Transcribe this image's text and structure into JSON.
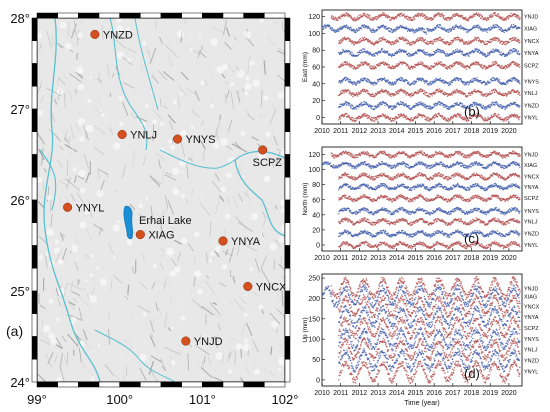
{
  "map": {
    "label": "(a)",
    "lat_ticks": [
      "28°",
      "27°",
      "26°",
      "25°",
      "24°"
    ],
    "lon_ticks": [
      "99°",
      "100°",
      "101°",
      "102°"
    ],
    "lake_label": "Erhai Lake",
    "colors": {
      "station": "#d4501f",
      "lake": "#1a8fd6",
      "border": "#58c0cf",
      "relief": "#d9d9d9"
    },
    "stations": [
      {
        "name": "YNZD",
        "lon": 99.7,
        "lat": 27.82
      },
      {
        "name": "YNLJ",
        "lon": 100.03,
        "lat": 26.72
      },
      {
        "name": "YNYS",
        "lon": 100.7,
        "lat": 26.67
      },
      {
        "name": "SCPZ",
        "lon": 101.73,
        "lat": 26.55
      },
      {
        "name": "YNYL",
        "lon": 99.37,
        "lat": 25.92
      },
      {
        "name": "XIAG",
        "lon": 100.25,
        "lat": 25.62
      },
      {
        "name": "YNYA",
        "lon": 101.25,
        "lat": 25.55
      },
      {
        "name": "YNCX",
        "lon": 101.55,
        "lat": 25.05
      },
      {
        "name": "YNJD",
        "lon": 100.8,
        "lat": 24.45
      }
    ]
  },
  "chart_data": [
    {
      "type": "scatter",
      "panel_label": "(b)",
      "xlabel": "",
      "ylabel": "East (mm)",
      "xlim": [
        2010,
        2020.7
      ],
      "ylim": [
        -8,
        128
      ],
      "x_ticks": [
        "2010",
        "2011",
        "2012",
        "2013",
        "2014",
        "2015",
        "2016",
        "2017",
        "2018",
        "2019",
        "2020"
      ],
      "y_ticks": [
        0,
        20,
        40,
        60,
        80,
        100,
        120
      ],
      "series": [
        {
          "name": "YNJD",
          "offset": 120,
          "start": 2010.5,
          "color": "#b04a4a"
        },
        {
          "name": "XIAG",
          "offset": 106,
          "start": 2010.0,
          "color": "#3d5aa8"
        },
        {
          "name": "YNCX",
          "offset": 91,
          "start": 2010.9,
          "color": "#b04a4a"
        },
        {
          "name": "YNYA",
          "offset": 77,
          "start": 2010.9,
          "color": "#3d5aa8"
        },
        {
          "name": "SCPZ",
          "offset": 62,
          "start": 2010.9,
          "color": "#b04a4a"
        },
        {
          "name": "YNYS",
          "offset": 43,
          "start": 2010.9,
          "color": "#3d5aa8"
        },
        {
          "name": "YNLJ",
          "offset": 29,
          "start": 2010.9,
          "color": "#b04a4a"
        },
        {
          "name": "YNZD",
          "offset": 14,
          "start": 2010.9,
          "color": "#3d5aa8"
        },
        {
          "name": "YNYL",
          "offset": 0,
          "start": 2010.9,
          "color": "#b04a4a"
        }
      ]
    },
    {
      "type": "scatter",
      "panel_label": "(c)",
      "xlabel": "",
      "ylabel": "North (mm)",
      "xlim": [
        2010,
        2020.7
      ],
      "ylim": [
        -8,
        130
      ],
      "x_ticks": [
        "2010",
        "2011",
        "2012",
        "2013",
        "2014",
        "2015",
        "2016",
        "2017",
        "2018",
        "2019",
        "2020"
      ],
      "y_ticks": [
        0,
        20,
        40,
        60,
        80,
        100,
        120
      ],
      "series": [
        {
          "name": "YNJD",
          "offset": 120,
          "start": 2010.5,
          "color": "#b04a4a"
        },
        {
          "name": "XIAG",
          "offset": 106,
          "start": 2010.0,
          "color": "#3d5aa8"
        },
        {
          "name": "YNCX",
          "offset": 91,
          "start": 2010.9,
          "color": "#b04a4a"
        },
        {
          "name": "YNYA",
          "offset": 77,
          "start": 2010.9,
          "color": "#3d5aa8"
        },
        {
          "name": "SCPZ",
          "offset": 62,
          "start": 2010.9,
          "color": "#b04a4a"
        },
        {
          "name": "YNYS",
          "offset": 45,
          "start": 2010.9,
          "color": "#3d5aa8"
        },
        {
          "name": "YNLJ",
          "offset": 31,
          "start": 2010.9,
          "color": "#b04a4a"
        },
        {
          "name": "YNZD",
          "offset": 15,
          "start": 2010.9,
          "color": "#3d5aa8"
        },
        {
          "name": "YNYL",
          "offset": 0,
          "start": 2010.9,
          "color": "#b04a4a"
        }
      ]
    },
    {
      "type": "scatter",
      "panel_label": "(d)",
      "xlabel": "Time (year)",
      "ylabel": "Up (mm)",
      "xlim": [
        2010,
        2020.7
      ],
      "ylim": [
        -15,
        260
      ],
      "x_ticks": [
        "2010",
        "2011",
        "2012",
        "2013",
        "2014",
        "2015",
        "2016",
        "2017",
        "2018",
        "2019",
        "2020"
      ],
      "y_ticks": [
        0,
        50,
        100,
        150,
        200,
        250
      ],
      "series": [
        {
          "name": "YNJD",
          "offset": 225,
          "start": 2010.5,
          "color": "#b04a4a"
        },
        {
          "name": "XIAG",
          "offset": 205,
          "start": 2010.0,
          "color": "#3d5aa8"
        },
        {
          "name": "YNCX",
          "offset": 180,
          "start": 2010.9,
          "color": "#b04a4a"
        },
        {
          "name": "YNYA",
          "offset": 155,
          "start": 2010.9,
          "color": "#3d5aa8"
        },
        {
          "name": "SCPZ",
          "offset": 128,
          "start": 2010.9,
          "color": "#b04a4a"
        },
        {
          "name": "YNYS",
          "offset": 100,
          "start": 2010.9,
          "color": "#3d5aa8"
        },
        {
          "name": "YNLJ",
          "offset": 75,
          "start": 2010.9,
          "color": "#b04a4a"
        },
        {
          "name": "YNZD",
          "offset": 48,
          "start": 2010.9,
          "color": "#3d5aa8"
        },
        {
          "name": "YNYL",
          "offset": 20,
          "start": 2010.9,
          "color": "#b04a4a"
        }
      ]
    }
  ]
}
